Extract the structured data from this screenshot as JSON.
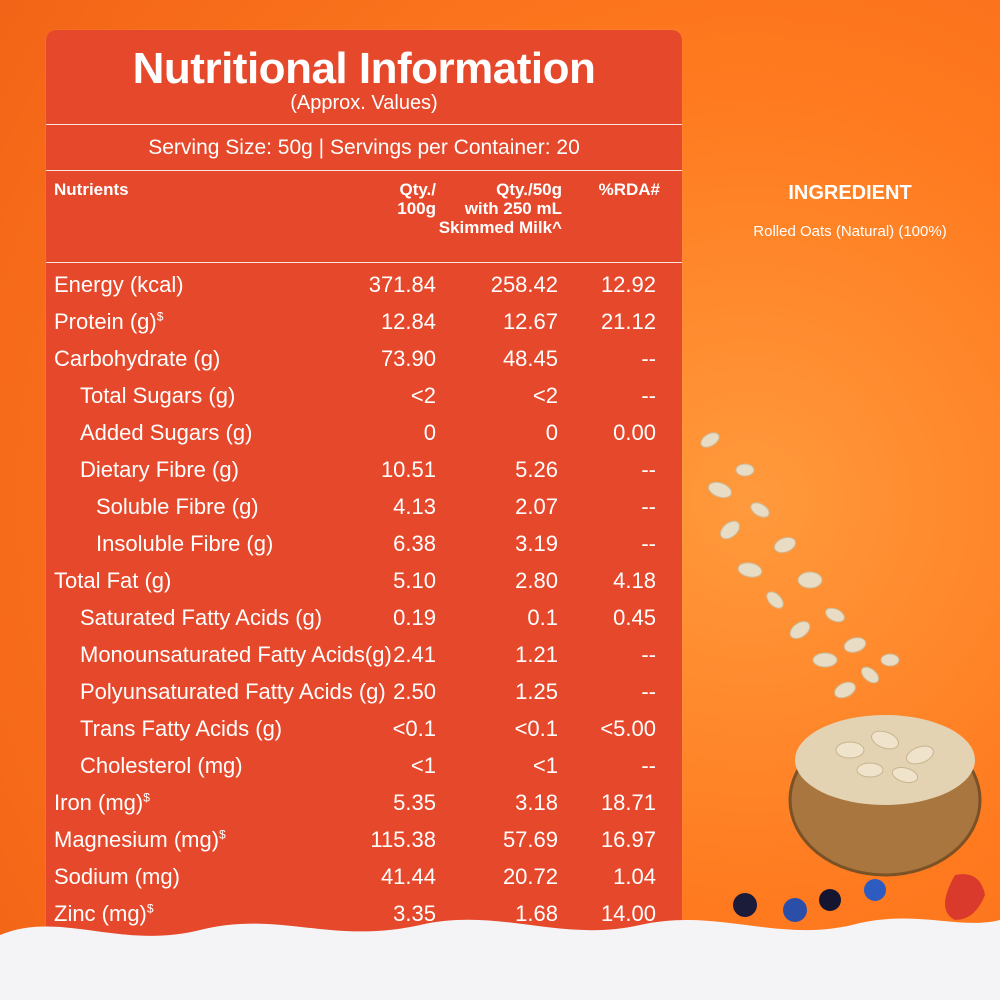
{
  "table": {
    "title": "Nutritional Information",
    "subtitle": "(Approx. Values)",
    "serving": "Serving Size: 50g | Servings per Container: 20",
    "headers": {
      "nutrients": "Nutrients",
      "qty100": [
        "Qty./",
        "100g"
      ],
      "qty50": [
        "Qty./50g",
        "with 250 mL",
        "Skimmed Milk^"
      ],
      "rda": "%RDA#"
    },
    "rows": [
      {
        "name": "Energy (kcal)",
        "sup": "",
        "v1": "371.84",
        "v2": "258.42",
        "v3": "12.92"
      },
      {
        "name": "Protein (g)",
        "sup": "$",
        "v1": "12.84",
        "v2": "12.67",
        "v3": "21.12"
      },
      {
        "name": "Carbohydrate (g)",
        "sup": "",
        "v1": "73.90",
        "v2": "48.45",
        "v3": "--"
      },
      {
        "name": "Total Sugars (g)",
        "sup": "",
        "v1": "<2",
        "v2": "<2",
        "v3": "--"
      },
      {
        "name": "Added Sugars (g)",
        "sup": "",
        "v1": "0",
        "v2": "0",
        "v3": "0.00"
      },
      {
        "name": "Dietary Fibre (g)",
        "sup": "",
        "v1": "10.51",
        "v2": "5.26",
        "v3": "--"
      },
      {
        "name": "Soluble Fibre (g)",
        "sup": "",
        "v1": "4.13",
        "v2": "2.07",
        "v3": "--"
      },
      {
        "name": "Insoluble Fibre (g)",
        "sup": "",
        "v1": "6.38",
        "v2": "3.19",
        "v3": "--"
      },
      {
        "name": "Total Fat (g)",
        "sup": "",
        "v1": "5.10",
        "v2": "2.80",
        "v3": "4.18"
      },
      {
        "name": "Saturated Fatty Acids (g)",
        "sup": "",
        "v1": "0.19",
        "v2": "0.1",
        "v3": "0.45"
      },
      {
        "name": "Monounsaturated Fatty Acids(g)",
        "sup": "",
        "v1": "2.41",
        "v2": "1.21",
        "v3": "--"
      },
      {
        "name": "Polyunsaturated Fatty Acids (g)",
        "sup": "",
        "v1": "2.50",
        "v2": "1.25",
        "v3": "--"
      },
      {
        "name": "Trans Fatty Acids (g)",
        "sup": "",
        "v1": "<0.1",
        "v2": "<0.1",
        "v3": "<5.00"
      },
      {
        "name": "Cholesterol (mg)",
        "sup": "",
        "v1": "<1",
        "v2": "<1",
        "v3": "--"
      },
      {
        "name": "Iron (mg)",
        "sup": "$",
        "v1": "5.35",
        "v2": "3.18",
        "v3": "18.71"
      },
      {
        "name": "Magnesium (mg)",
        "sup": "$",
        "v1": "115.38",
        "v2": "57.69",
        "v3": "16.97"
      },
      {
        "name": "Sodium (mg)",
        "sup": "",
        "v1": "41.44",
        "v2": "20.72",
        "v3": "1.04"
      },
      {
        "name": "Zinc (mg)",
        "sup": "$",
        "v1": "3.35",
        "v2": "1.68",
        "v3": "14.00"
      }
    ]
  },
  "ingredient": {
    "heading": "INGREDIENT",
    "text": "Rolled Oats (Natural) (100%)"
  },
  "colors": {
    "panel": "#e5482b",
    "background": "#ff7a1f"
  }
}
